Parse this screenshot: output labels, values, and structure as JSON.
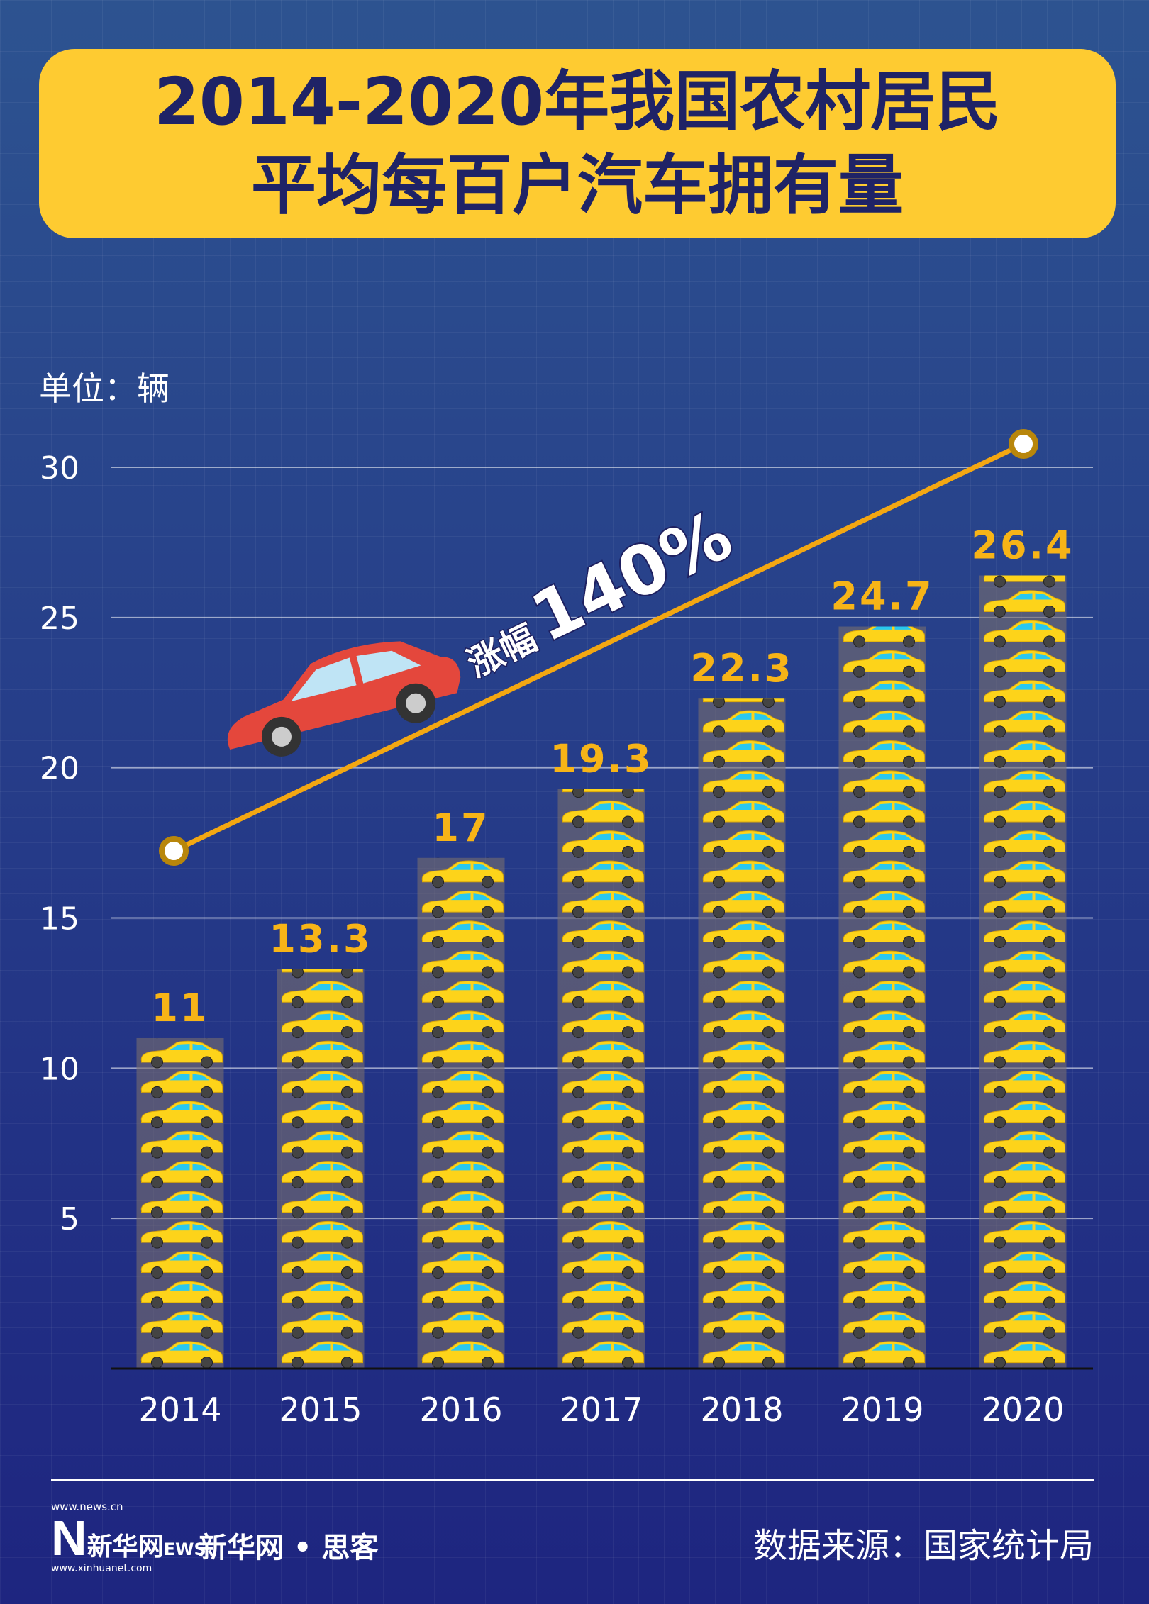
{
  "title": {
    "line1": "2014-2020年我国农村居民",
    "line2": "平均每百户汽车拥有量"
  },
  "unit_label": "单位：辆",
  "chart_data": {
    "type": "bar",
    "title": "2014-2020年我国农村居民平均每百户汽车拥有量",
    "ylabel": "单位：辆",
    "categories": [
      "2014",
      "2015",
      "2016",
      "2017",
      "2018",
      "2019",
      "2020"
    ],
    "values": [
      11,
      13.3,
      17,
      19.3,
      22.3,
      24.7,
      26.4
    ],
    "data_labels": [
      "11",
      "13.3",
      "17",
      "19.3",
      "22.3",
      "24.7",
      "26.4"
    ],
    "yticks": [
      "5",
      "10",
      "15",
      "20",
      "25",
      "30"
    ],
    "ylim": [
      0,
      30
    ],
    "grid": true,
    "annotation": {
      "prefix": "涨幅",
      "value": "140%"
    },
    "colors": {
      "bar_car": "#fdd31a",
      "label": "#f7b417",
      "trend": "#f3a712"
    }
  },
  "footer": {
    "logo_top": "www.news.cn",
    "logo_n": "N",
    "logo_cn": "新华网",
    "logo_ews": "EWS",
    "logo_bottom": "www.xinhuanet.com",
    "brand": "新华网 • 思客",
    "source": "数据来源：国家统计局"
  }
}
